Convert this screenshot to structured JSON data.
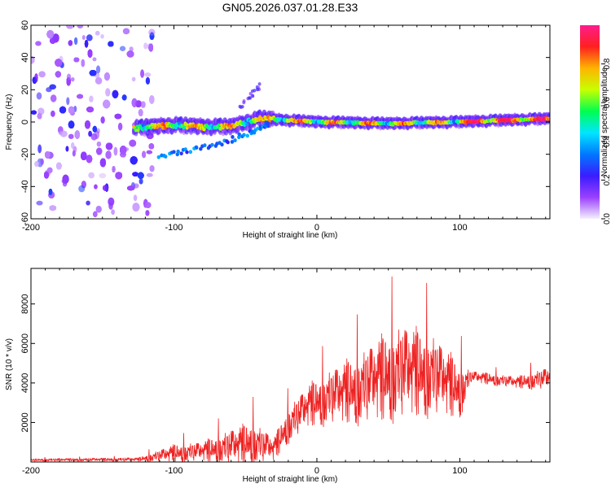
{
  "title": "GN05.2026.037.01.28.E33",
  "chart_data": [
    {
      "type": "heatmap",
      "name": "spectrogram",
      "title": "GN05.2026.037.01.28.E33",
      "xlabel": "Height of straight line (km)",
      "ylabel": "Frequency (Hz)",
      "xlim": [
        -200,
        163
      ],
      "ylim": [
        -60,
        60
      ],
      "xticks": [
        -200,
        -100,
        0,
        100
      ],
      "yticks": [
        -60,
        -40,
        -20,
        0,
        20,
        40,
        60
      ],
      "colorbar": {
        "label": "Normalized spectral amplitude",
        "range": [
          0,
          1
        ],
        "ticks": [
          0.0,
          0.2,
          0.4,
          0.6,
          0.8
        ],
        "colormap": [
          "#f5f0ff",
          "#9a40ff",
          "#3a1cff",
          "#0078ff",
          "#00e6ff",
          "#00ff50",
          "#c8ff00",
          "#ffb400",
          "#ff2020",
          "#ff1c8c"
        ]
      },
      "noise_region_x": [
        -200,
        -115
      ],
      "band_centerline": [
        {
          "x": -128,
          "y": -4
        },
        {
          "x": -100,
          "y": -2
        },
        {
          "x": -80,
          "y": -3
        },
        {
          "x": -60,
          "y": -3
        },
        {
          "x": -40,
          "y": 2
        },
        {
          "x": -20,
          "y": 1
        },
        {
          "x": 0,
          "y": 0
        },
        {
          "x": 50,
          "y": -1
        },
        {
          "x": 100,
          "y": 0
        },
        {
          "x": 163,
          "y": 2
        }
      ],
      "secondary_trace": [
        {
          "x": -110,
          "y": -22
        },
        {
          "x": -90,
          "y": -18
        },
        {
          "x": -70,
          "y": -14
        },
        {
          "x": -50,
          "y": -8
        },
        {
          "x": -35,
          "y": -2
        }
      ]
    },
    {
      "type": "line",
      "name": "snr",
      "xlabel": "Height of straight line (km)",
      "ylabel": "SNR (10 * v/v)",
      "xlim": [
        -200,
        163
      ],
      "ylim": [
        0,
        9800
      ],
      "xticks": [
        -200,
        -100,
        0,
        100
      ],
      "yticks": [
        2000,
        4000,
        6000,
        8000
      ],
      "color": "#ee2222",
      "envelope": [
        {
          "x": -200,
          "base": 100,
          "amp": 120
        },
        {
          "x": -125,
          "base": 120,
          "amp": 180
        },
        {
          "x": -100,
          "base": 400,
          "amp": 900
        },
        {
          "x": -80,
          "base": 500,
          "amp": 1000
        },
        {
          "x": -60,
          "base": 700,
          "amp": 1800
        },
        {
          "x": -45,
          "base": 900,
          "amp": 2200
        },
        {
          "x": -30,
          "base": 600,
          "amp": 1200
        },
        {
          "x": -20,
          "base": 1800,
          "amp": 1800
        },
        {
          "x": -5,
          "base": 2800,
          "amp": 2200
        },
        {
          "x": 10,
          "base": 3200,
          "amp": 2800
        },
        {
          "x": 30,
          "base": 3600,
          "amp": 3600
        },
        {
          "x": 50,
          "base": 4200,
          "amp": 4600
        },
        {
          "x": 60,
          "base": 4400,
          "amp": 4800
        },
        {
          "x": 80,
          "base": 4300,
          "amp": 4200
        },
        {
          "x": 100,
          "base": 3500,
          "amp": 2800
        },
        {
          "x": 108,
          "base": 4300,
          "amp": 600
        },
        {
          "x": 140,
          "base": 4000,
          "amp": 600
        },
        {
          "x": 163,
          "base": 4200,
          "amp": 1200
        }
      ]
    }
  ]
}
